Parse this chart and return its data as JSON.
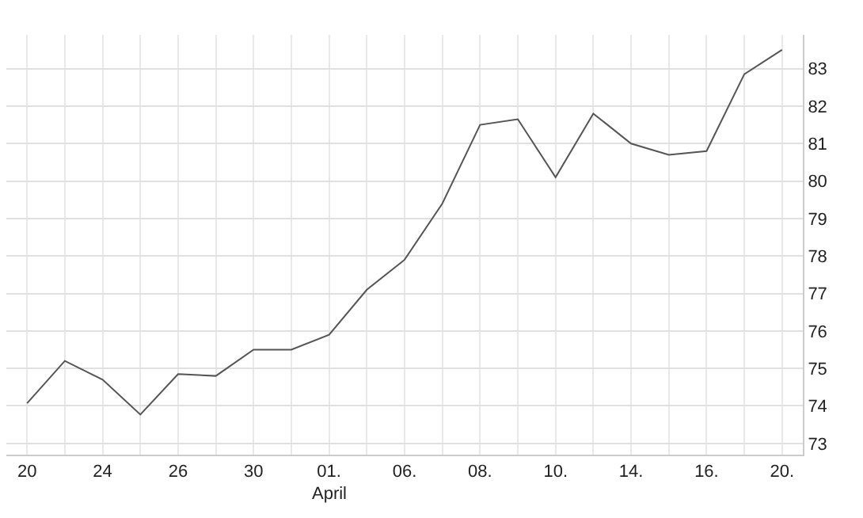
{
  "chart_data": {
    "type": "line",
    "categories": [
      "20",
      null,
      "24",
      null,
      "26",
      null,
      "30",
      null,
      "01.",
      null,
      "06.",
      null,
      "08.",
      null,
      "10.",
      null,
      "14.",
      null,
      "16.",
      null,
      "20."
    ],
    "values": [
      74.07,
      75.2,
      74.7,
      73.77,
      74.85,
      74.8,
      75.5,
      75.5,
      75.9,
      77.1,
      77.9,
      79.4,
      81.5,
      81.65,
      80.1,
      81.8,
      81.0,
      80.7,
      80.8,
      82.85,
      83.5
    ],
    "color": "#555555",
    "annotations": [
      "April"
    ],
    "ylim": [
      72.7,
      83.9
    ],
    "yticks": [
      73,
      74,
      75,
      76,
      77,
      78,
      79,
      80,
      81,
      82,
      83
    ],
    "grid": true,
    "marker": "none",
    "line_style": "solid"
  }
}
